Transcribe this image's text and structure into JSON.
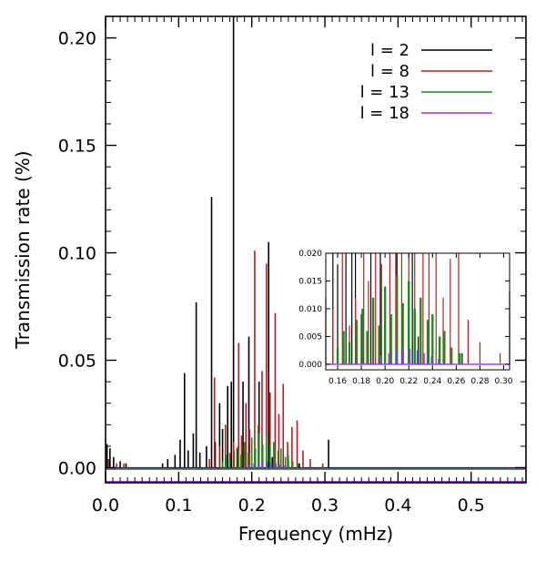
{
  "chart_data": {
    "type": "line",
    "subtype": "spike-spectrum",
    "xlabel": "Frequency (mHz)",
    "ylabel": "Transmission rate (%)",
    "xlim": [
      0.0,
      0.575
    ],
    "ylim": [
      -0.007,
      0.21
    ],
    "x_ticks": [
      {
        "value": 0.0,
        "label": "0.0"
      },
      {
        "value": 0.1,
        "label": "0.1"
      },
      {
        "value": 0.2,
        "label": "0.2"
      },
      {
        "value": 0.3,
        "label": "0.3"
      },
      {
        "value": 0.4,
        "label": "0.4"
      },
      {
        "value": 0.5,
        "label": "0.5"
      }
    ],
    "y_ticks": [
      {
        "value": 0.0,
        "label": "0.00"
      },
      {
        "value": 0.05,
        "label": "0.05"
      },
      {
        "value": 0.1,
        "label": "0.10"
      },
      {
        "value": 0.15,
        "label": "0.15"
      },
      {
        "value": 0.2,
        "label": "0.20"
      }
    ],
    "legend_position": "top-right",
    "series": [
      {
        "name": "l = 2",
        "color": "#000000",
        "peaks": [
          {
            "x": 0.002,
            "y": 0.011
          },
          {
            "x": 0.006,
            "y": 0.009
          },
          {
            "x": 0.011,
            "y": 0.005
          },
          {
            "x": 0.02,
            "y": 0.003
          },
          {
            "x": 0.028,
            "y": 0.002
          },
          {
            "x": 0.078,
            "y": 0.002
          },
          {
            "x": 0.085,
            "y": 0.004
          },
          {
            "x": 0.095,
            "y": 0.006
          },
          {
            "x": 0.102,
            "y": 0.013
          },
          {
            "x": 0.108,
            "y": 0.044
          },
          {
            "x": 0.113,
            "y": 0.008
          },
          {
            "x": 0.12,
            "y": 0.016
          },
          {
            "x": 0.124,
            "y": 0.077
          },
          {
            "x": 0.129,
            "y": 0.007
          },
          {
            "x": 0.138,
            "y": 0.01
          },
          {
            "x": 0.145,
            "y": 0.126
          },
          {
            "x": 0.15,
            "y": 0.012
          },
          {
            "x": 0.156,
            "y": 0.03
          },
          {
            "x": 0.16,
            "y": 0.018
          },
          {
            "x": 0.167,
            "y": 0.038
          },
          {
            "x": 0.172,
            "y": 0.04
          },
          {
            "x": 0.175,
            "y": 0.213
          },
          {
            "x": 0.18,
            "y": 0.009
          },
          {
            "x": 0.188,
            "y": 0.04
          },
          {
            "x": 0.196,
            "y": 0.061
          },
          {
            "x": 0.21,
            "y": 0.04
          },
          {
            "x": 0.223,
            "y": 0.105
          },
          {
            "x": 0.228,
            "y": 0.005
          },
          {
            "x": 0.25,
            "y": 0.003
          },
          {
            "x": 0.265,
            "y": 0.002
          },
          {
            "x": 0.305,
            "y": 0.013
          }
        ]
      },
      {
        "name": "l = 8",
        "color": "#b22222",
        "peaks": [
          {
            "x": 0.004,
            "y": 0.004
          },
          {
            "x": 0.015,
            "y": 0.002
          },
          {
            "x": 0.025,
            "y": 0.002
          },
          {
            "x": 0.142,
            "y": 0.004
          },
          {
            "x": 0.149,
            "y": 0.042
          },
          {
            "x": 0.156,
            "y": 0.01
          },
          {
            "x": 0.164,
            "y": 0.02
          },
          {
            "x": 0.17,
            "y": 0.007
          },
          {
            "x": 0.175,
            "y": 0.012
          },
          {
            "x": 0.182,
            "y": 0.058
          },
          {
            "x": 0.186,
            "y": 0.015
          },
          {
            "x": 0.192,
            "y": 0.03
          },
          {
            "x": 0.197,
            "y": 0.018
          },
          {
            "x": 0.204,
            "y": 0.101
          },
          {
            "x": 0.209,
            "y": 0.02
          },
          {
            "x": 0.214,
            "y": 0.045
          },
          {
            "x": 0.22,
            "y": 0.095
          },
          {
            "x": 0.225,
            "y": 0.035
          },
          {
            "x": 0.232,
            "y": 0.072
          },
          {
            "x": 0.237,
            "y": 0.025
          },
          {
            "x": 0.243,
            "y": 0.039
          },
          {
            "x": 0.249,
            "y": 0.012
          },
          {
            "x": 0.255,
            "y": 0.019
          },
          {
            "x": 0.262,
            "y": 0.022
          },
          {
            "x": 0.27,
            "y": 0.008
          },
          {
            "x": 0.28,
            "y": 0.004
          },
          {
            "x": 0.297,
            "y": 0.002
          }
        ]
      },
      {
        "name": "l = 13",
        "color": "#1f8b1f",
        "peaks": [
          {
            "x": 0.16,
            "y": 0.003
          },
          {
            "x": 0.165,
            "y": 0.006
          },
          {
            "x": 0.17,
            "y": 0.004
          },
          {
            "x": 0.176,
            "y": 0.008
          },
          {
            "x": 0.181,
            "y": 0.01
          },
          {
            "x": 0.185,
            "y": 0.006
          },
          {
            "x": 0.19,
            "y": 0.012
          },
          {
            "x": 0.195,
            "y": 0.007
          },
          {
            "x": 0.2,
            "y": 0.014
          },
          {
            "x": 0.205,
            "y": 0.009
          },
          {
            "x": 0.21,
            "y": 0.016
          },
          {
            "x": 0.215,
            "y": 0.011
          },
          {
            "x": 0.22,
            "y": 0.015
          },
          {
            "x": 0.225,
            "y": 0.01
          },
          {
            "x": 0.23,
            "y": 0.012
          },
          {
            "x": 0.236,
            "y": 0.008
          },
          {
            "x": 0.24,
            "y": 0.009
          },
          {
            "x": 0.246,
            "y": 0.005
          },
          {
            "x": 0.25,
            "y": 0.006
          },
          {
            "x": 0.256,
            "y": 0.003
          },
          {
            "x": 0.263,
            "y": 0.002
          }
        ]
      },
      {
        "name": "l = 18",
        "color": "#9b30ff",
        "peaks": [
          {
            "x": 0.19,
            "y": 0.001
          },
          {
            "x": 0.196,
            "y": 0.0015
          },
          {
            "x": 0.203,
            "y": 0.002
          },
          {
            "x": 0.209,
            "y": 0.0025
          },
          {
            "x": 0.215,
            "y": 0.003
          },
          {
            "x": 0.221,
            "y": 0.0028
          },
          {
            "x": 0.227,
            "y": 0.0025
          },
          {
            "x": 0.233,
            "y": 0.002
          },
          {
            "x": 0.239,
            "y": 0.0015
          },
          {
            "x": 0.245,
            "y": 0.001
          }
        ]
      }
    ],
    "inset": {
      "xlim": [
        0.15,
        0.305
      ],
      "ylim": [
        -0.001,
        0.02
      ],
      "x_ticks": [
        {
          "value": 0.16,
          "label": "0.16"
        },
        {
          "value": 0.18,
          "label": "0.18"
        },
        {
          "value": 0.2,
          "label": "0.20"
        },
        {
          "value": 0.22,
          "label": "0.22"
        },
        {
          "value": 0.24,
          "label": "0.24"
        },
        {
          "value": 0.26,
          "label": "0.26"
        },
        {
          "value": 0.28,
          "label": "0.28"
        },
        {
          "value": 0.3,
          "label": "0.30"
        }
      ],
      "y_ticks": [
        {
          "value": 0.0,
          "label": "0.000"
        },
        {
          "value": 0.005,
          "label": "0.005"
        },
        {
          "value": 0.01,
          "label": "0.010"
        },
        {
          "value": 0.015,
          "label": "0.015"
        },
        {
          "value": 0.02,
          "label": "0.020"
        }
      ]
    }
  }
}
